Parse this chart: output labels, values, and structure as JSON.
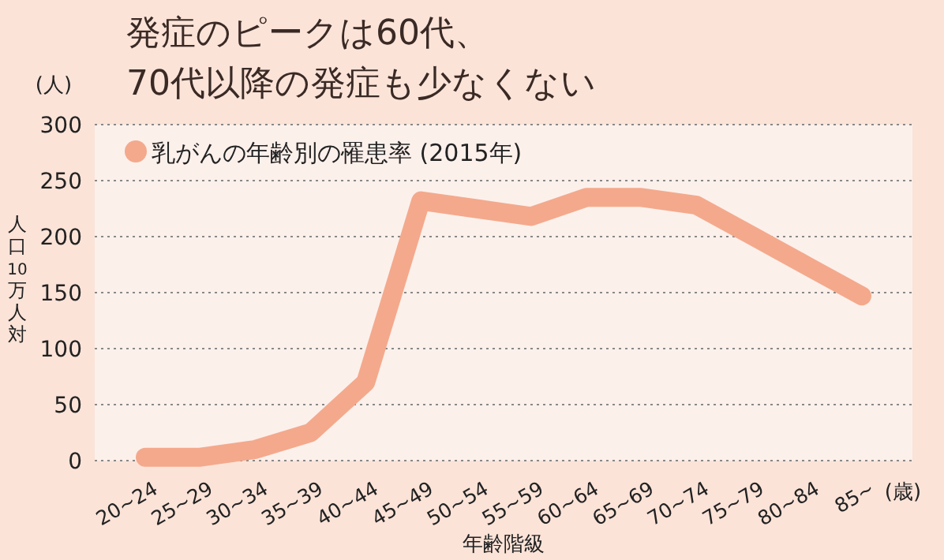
{
  "chart_data": {
    "type": "line",
    "title": "発症のピークは60代、\n70代以降の発症も少なくない",
    "xlabel": "年齢階級",
    "ylabel": "人口10万人対",
    "annotations": [
      "(人)",
      "(歳)"
    ],
    "categories": [
      "20~24",
      "25~29",
      "30~34",
      "35~39",
      "40~44",
      "45~49",
      "50~54",
      "55~59",
      "60~64",
      "65~69",
      "70~74",
      "75~79",
      "80~84",
      "85~"
    ],
    "series": [
      {
        "name": "乳がんの年齢別の罹患率 (2015年)",
        "color": "#f4a98c",
        "values": [
          3,
          3,
          10,
          25,
          70,
          232,
          225,
          218,
          235,
          235,
          228,
          201,
          174,
          147
        ]
      }
    ],
    "ylim": [
      0,
      300
    ],
    "yticks": [
      0,
      50,
      100,
      150,
      200,
      250,
      300
    ],
    "grid": "y",
    "legend": "top left",
    "marker": "none",
    "line_style": "solid"
  }
}
